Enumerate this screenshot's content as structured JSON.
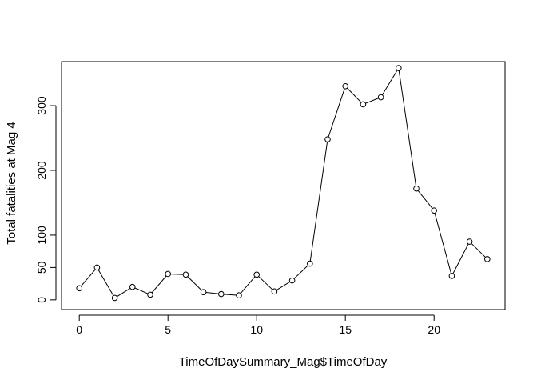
{
  "chart_data": {
    "type": "line",
    "title": "",
    "xlabel": "TimeOfDaySummary_Mag$TimeOfDay",
    "ylabel": "Total fatalities at Mag 4",
    "x": [
      0,
      1,
      2,
      3,
      4,
      5,
      6,
      7,
      8,
      9,
      10,
      11,
      12,
      13,
      14,
      15,
      16,
      17,
      18,
      19,
      20,
      21,
      22,
      23
    ],
    "values": [
      18,
      50,
      3,
      20,
      8,
      40,
      39,
      12,
      9,
      7,
      39,
      13,
      30,
      56,
      248,
      330,
      302,
      313,
      358,
      172,
      138,
      37,
      90,
      63
    ],
    "xlim": [
      -1,
      24
    ],
    "ylim": [
      -15,
      368
    ],
    "xticks": [
      0,
      5,
      10,
      15,
      20
    ],
    "xtick_labels": [
      "0",
      "5",
      "10",
      "15",
      "20"
    ],
    "yticks": [
      0,
      50,
      100,
      200,
      300
    ],
    "ytick_labels": [
      "0",
      "50",
      "100",
      "200",
      "300"
    ],
    "grid": false,
    "series_style": {
      "line_color": "#000000",
      "marker": "open-circle"
    }
  }
}
